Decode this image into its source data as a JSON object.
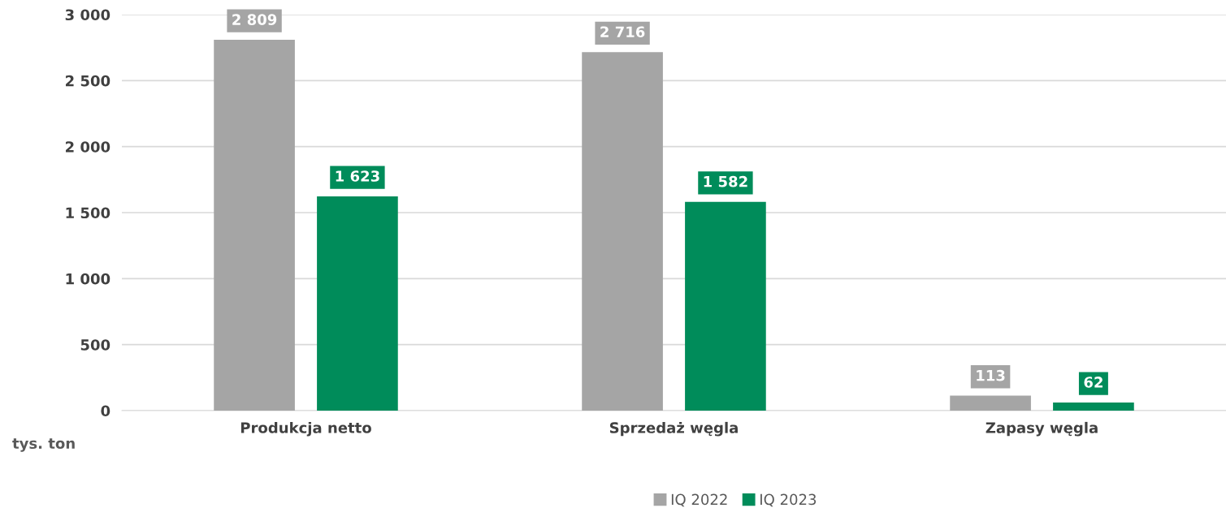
{
  "chart_data": {
    "type": "bar",
    "categories": [
      "Produkcja netto",
      "Sprzedaż węgla",
      "Zapasy węgla"
    ],
    "ylabel": "tys. ton",
    "series": [
      {
        "name": "IQ 2022",
        "color": "#a5a5a5",
        "values": [
          2809,
          2716,
          113
        ],
        "value_labels": [
          "2 809",
          "2 716",
          "113"
        ]
      },
      {
        "name": "IQ 2023",
        "color": "#008c5a",
        "values": [
          1623,
          1582,
          62
        ],
        "value_labels": [
          "1 623",
          "1 582",
          "62"
        ]
      }
    ],
    "ylim": [
      0,
      3000
    ],
    "yticks": [
      {
        "value": 0,
        "label": "0"
      },
      {
        "value": 500,
        "label": "500"
      },
      {
        "value": 1000,
        "label": "1 000"
      },
      {
        "value": 1500,
        "label": "1 500"
      },
      {
        "value": 2000,
        "label": "2 000"
      },
      {
        "value": 2500,
        "label": "2 500"
      },
      {
        "value": 3000,
        "label": "3 000"
      }
    ],
    "grid": "y",
    "legend": "bottom"
  }
}
